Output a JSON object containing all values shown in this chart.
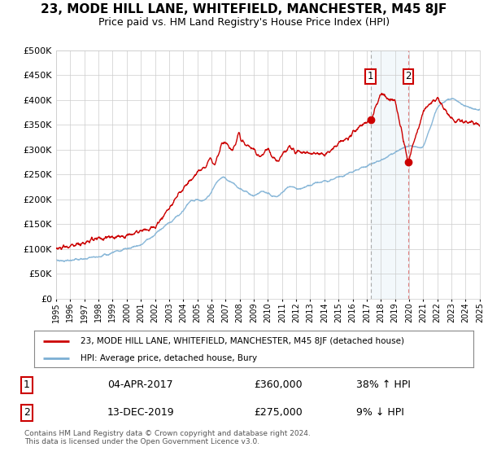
{
  "title": "23, MODE HILL LANE, WHITEFIELD, MANCHESTER, M45 8JF",
  "subtitle": "Price paid vs. HM Land Registry's House Price Index (HPI)",
  "legend_label_red": "23, MODE HILL LANE, WHITEFIELD, MANCHESTER, M45 8JF (detached house)",
  "legend_label_blue": "HPI: Average price, detached house, Bury",
  "footer": "Contains HM Land Registry data © Crown copyright and database right 2024.\nThis data is licensed under the Open Government Licence v3.0.",
  "annotation1_label": "1",
  "annotation1_date": "04-APR-2017",
  "annotation1_price": "£360,000",
  "annotation1_hpi": "38% ↑ HPI",
  "annotation2_label": "2",
  "annotation2_date": "13-DEC-2019",
  "annotation2_price": "£275,000",
  "annotation2_hpi": "9% ↓ HPI",
  "point1_x": 2017.27,
  "point1_y": 360000,
  "point2_x": 2019.95,
  "point2_y": 275000,
  "vline1_x": 2017.27,
  "vline2_x": 2019.95,
  "xmin": 1995,
  "xmax": 2025,
  "ymin": 0,
  "ymax": 500000,
  "yticks": [
    0,
    50000,
    100000,
    150000,
    200000,
    250000,
    300000,
    350000,
    400000,
    450000,
    500000
  ],
  "red_color": "#cc0000",
  "blue_color": "#7bafd4",
  "shade_color": "#d8e8f5",
  "grid_color": "#cccccc",
  "background_chart": "#ffffff",
  "background_fig": "#ffffff",
  "vline_dash_color": "#e08080",
  "vline1_gray_color": "#aaaaaa",
  "title_fontsize": 11,
  "subtitle_fontsize": 9
}
